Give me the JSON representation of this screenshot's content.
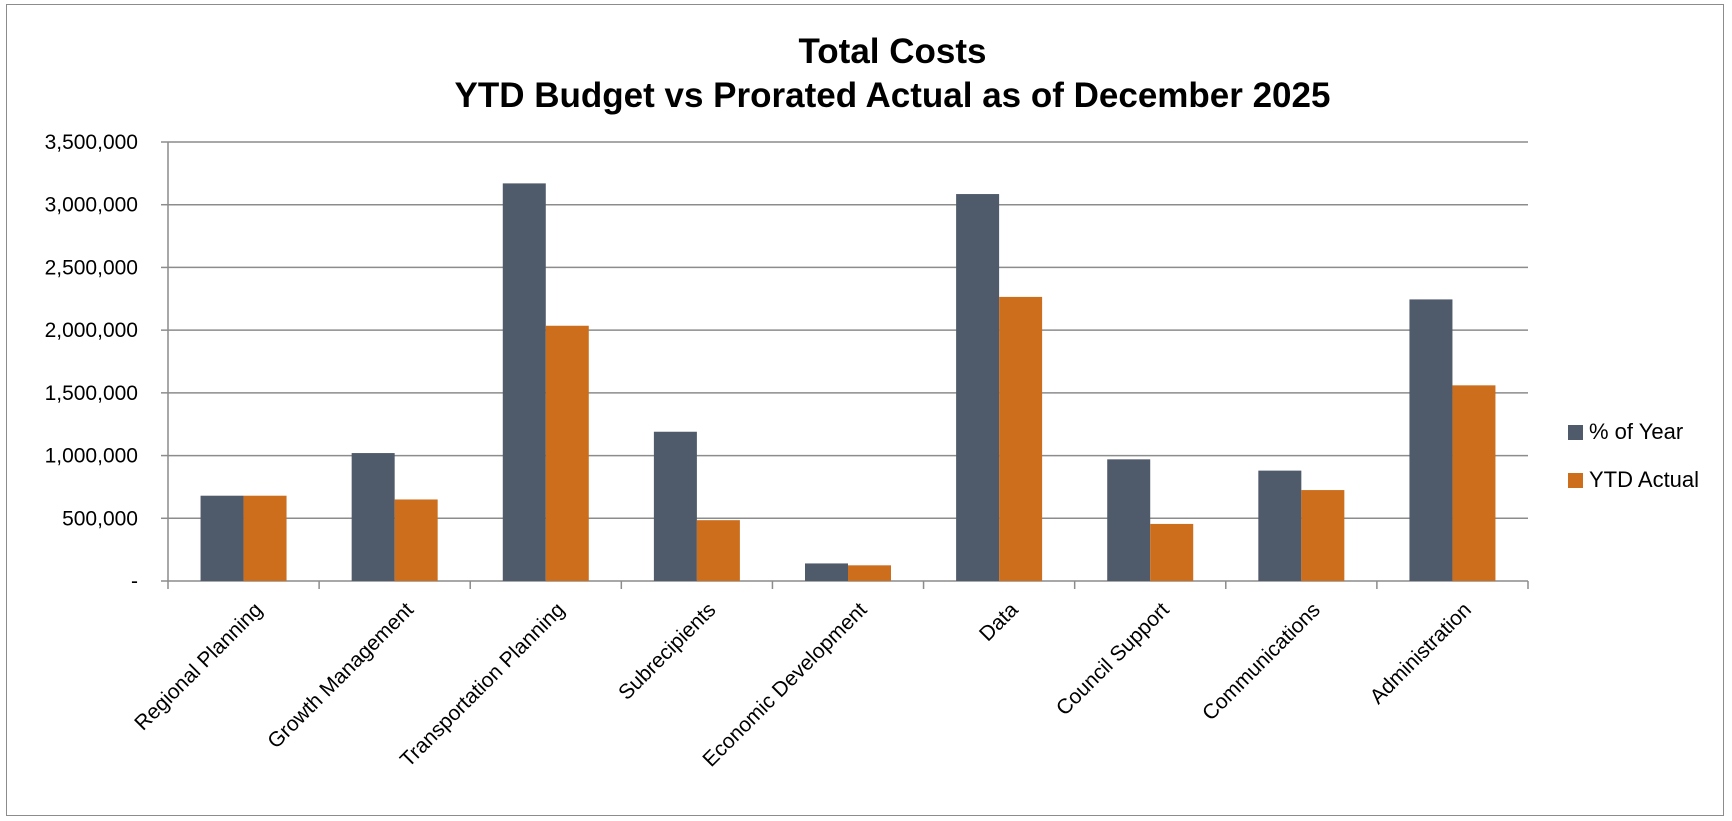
{
  "chart_data": {
    "type": "bar",
    "title": "Total Costs",
    "subtitle": "YTD Budget vs Prorated Actual as of December 2025",
    "categories": [
      "Regional Planning",
      "Growth Management",
      "Transportation Planning",
      "Subrecipients",
      "Economic Development",
      "Data",
      "Council Support",
      "Communications",
      "Administration"
    ],
    "series": [
      {
        "name": "% of Year",
        "color": "#4f5a6b",
        "values": [
          680000,
          1020000,
          3170000,
          1190000,
          140000,
          3085000,
          970000,
          880000,
          2245000
        ]
      },
      {
        "name": "YTD Actual",
        "color": "#cc6e1c",
        "values": [
          680000,
          650000,
          2035000,
          485000,
          125000,
          2265000,
          455000,
          725000,
          1560000
        ]
      }
    ],
    "ylim": [
      0,
      3500000
    ],
    "yticks": [
      0,
      500000,
      1000000,
      1500000,
      2000000,
      2500000,
      3000000,
      3500000
    ],
    "ytick_labels": [
      "-",
      "500,000",
      "1,000,000",
      "1,500,000",
      "2,000,000",
      "2,500,000",
      "3,000,000",
      "3,500,000"
    ],
    "grid": true,
    "legend_position": "right"
  }
}
